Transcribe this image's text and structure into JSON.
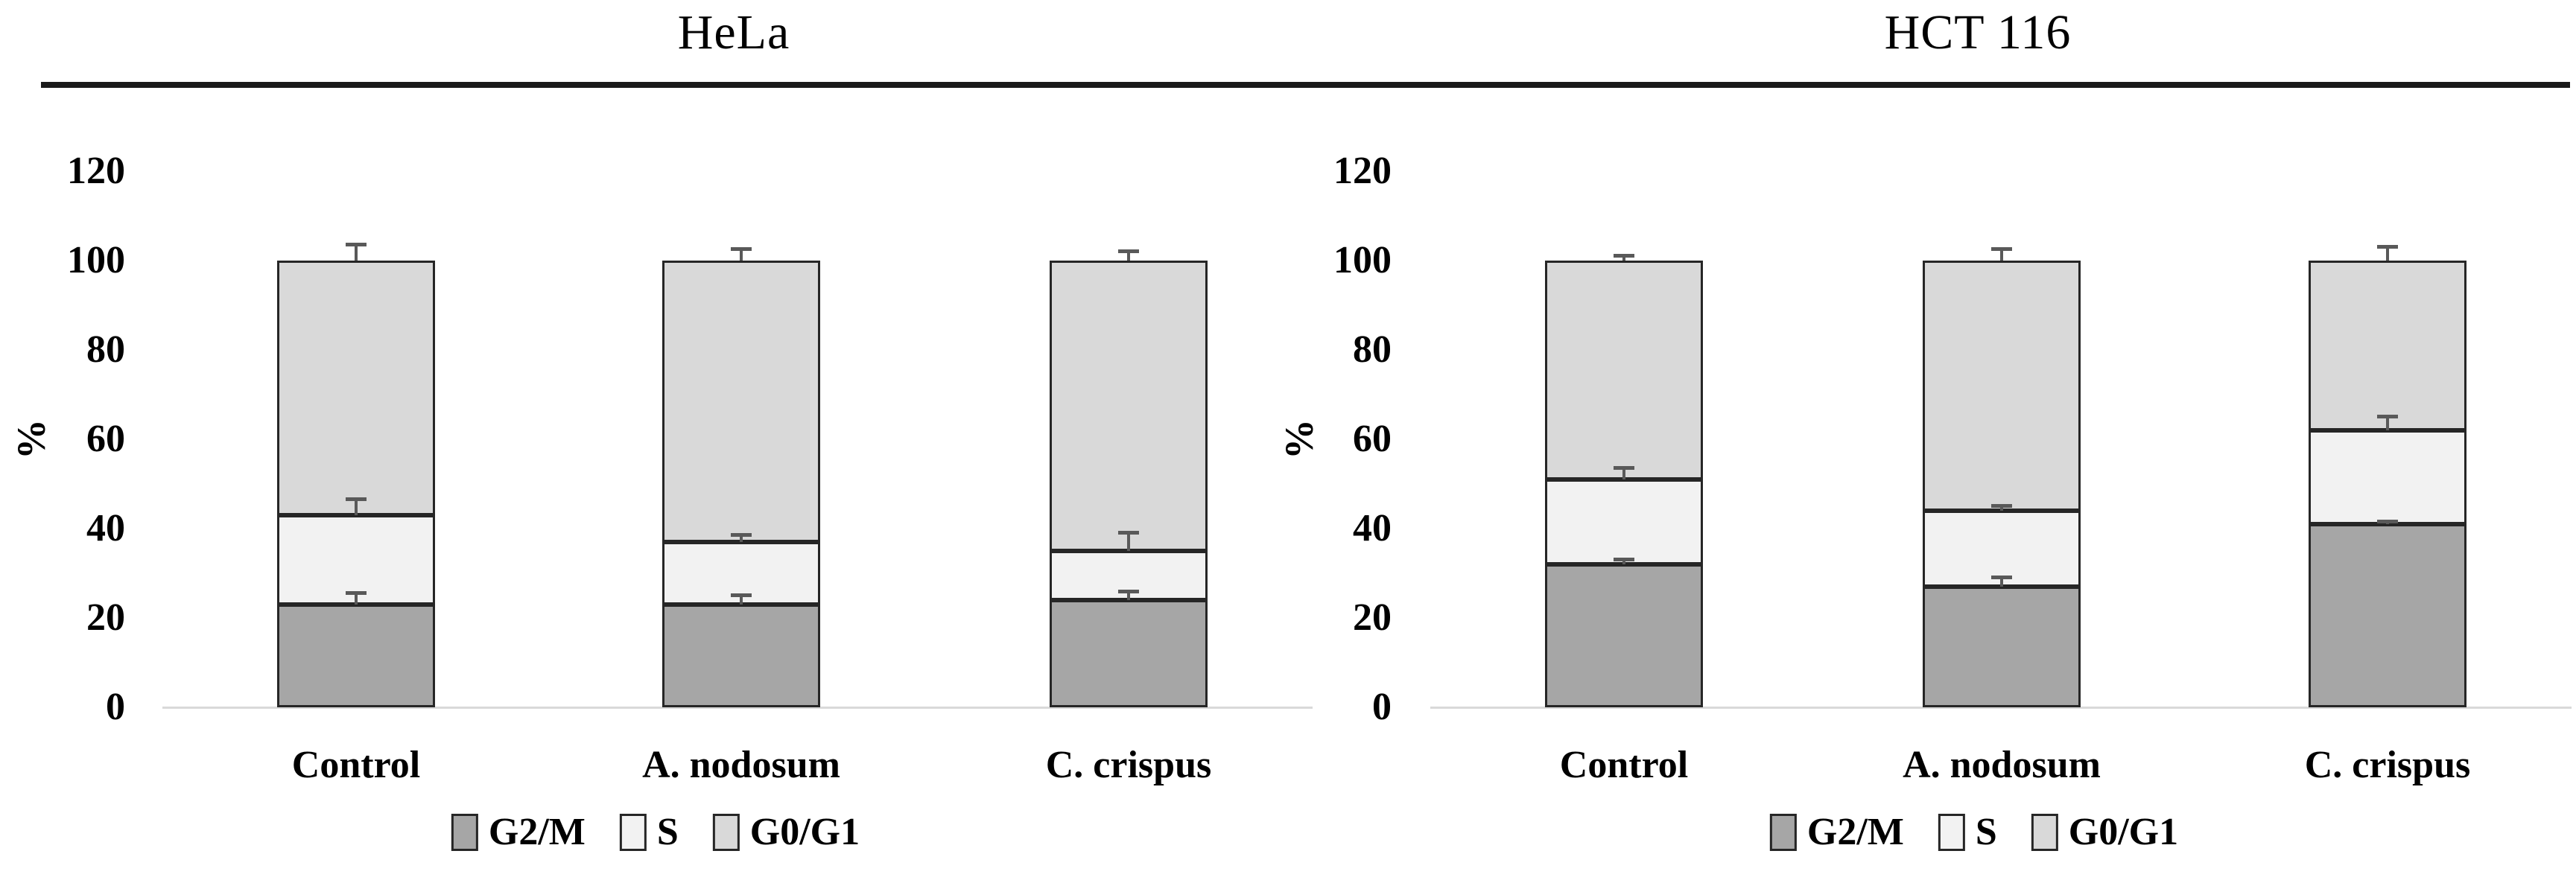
{
  "styles": {
    "border_color": "#262626",
    "error_bar_color": "#595959",
    "axis_line_color": "#d9d9d9",
    "header_rule_color": "#1a1a1a",
    "text_color": "#000000",
    "background": "#ffffff"
  },
  "chart_data": [
    {
      "type": "stacked_bar",
      "title": "HeLa",
      "ylabel": "%",
      "ylim": [
        0,
        120
      ],
      "yticks": [
        0,
        20,
        40,
        60,
        80,
        100,
        120
      ],
      "grid": false,
      "legend_position": "bottom",
      "categories": [
        "Control",
        "A. nodosum",
        "C. crispus"
      ],
      "series": [
        {
          "name": "G2/M",
          "color": "#a6a6a6",
          "values": [
            23,
            23,
            24
          ],
          "errors": [
            3,
            2.5,
            2.3
          ]
        },
        {
          "name": "S",
          "color": "#f2f2f2",
          "values": [
            20,
            14,
            11
          ],
          "errors": [
            4,
            2,
            4.5
          ]
        },
        {
          "name": "G0/G1",
          "color": "#d9d9d9",
          "values": [
            57,
            63,
            65
          ],
          "errors": [
            4,
            3,
            2.5
          ]
        }
      ]
    },
    {
      "type": "stacked_bar",
      "title": "HCT 116",
      "ylabel": "%",
      "ylim": [
        0,
        120
      ],
      "yticks": [
        0,
        20,
        40,
        60,
        80,
        100,
        120
      ],
      "grid": false,
      "legend_position": "bottom",
      "categories": [
        "Control",
        "A. nodosum",
        "C. crispus"
      ],
      "series": [
        {
          "name": "G2/M",
          "color": "#a6a6a6",
          "values": [
            32,
            27,
            41
          ],
          "errors": [
            1.5,
            2.5,
            1
          ]
        },
        {
          "name": "S",
          "color": "#f2f2f2",
          "values": [
            19,
            17,
            21
          ],
          "errors": [
            3,
            1.5,
            3.5
          ]
        },
        {
          "name": "G0/G1",
          "color": "#d9d9d9",
          "values": [
            49,
            56,
            38
          ],
          "errors": [
            1.5,
            3,
            3.5
          ]
        }
      ]
    }
  ]
}
